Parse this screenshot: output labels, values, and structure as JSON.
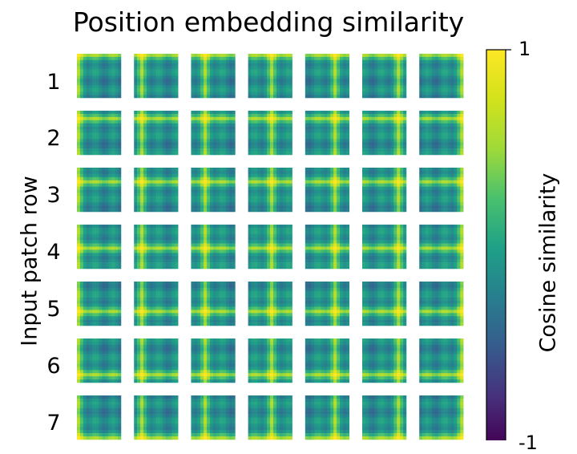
{
  "chart_data": {
    "type": "heatmap",
    "title": "Position embedding similarity",
    "ylabel": "Input patch row",
    "colorbar": {
      "label": "Cosine similarity",
      "range": [
        -1,
        1
      ],
      "ticks": [
        "1",
        "-1"
      ],
      "colormap": "viridis"
    },
    "rows": [
      "1",
      "2",
      "3",
      "4",
      "5",
      "6",
      "7"
    ],
    "columns": 7,
    "grid_per_cell": [
      14,
      14
    ],
    "description_of_values": "Each cell shows the cosine similarity between the position embedding at (row, col) and all 14x14 patch embeddings; high values (yellow) along the same row and column"
  }
}
